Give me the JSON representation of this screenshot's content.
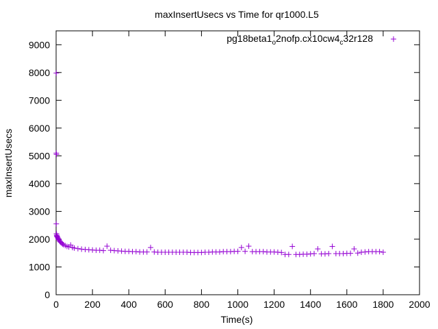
{
  "chart_data": {
    "type": "scatter",
    "title": "maxInsertUsecs vs Time for qr1000.L5",
    "xlabel": "Time(s)",
    "ylabel": "maxInsertUsecs",
    "xlim": [
      0,
      2000
    ],
    "ylim": [
      0,
      9500
    ],
    "x_ticks": [
      0,
      200,
      400,
      600,
      800,
      1000,
      1200,
      1400,
      1600,
      1800,
      2000
    ],
    "y_ticks": [
      0,
      1000,
      2000,
      3000,
      4000,
      5000,
      6000,
      7000,
      8000,
      9000
    ],
    "grid": false,
    "legend_position": "top-right",
    "legend": {
      "parts": [
        {
          "text": "pg18beta1",
          "sub": false
        },
        {
          "text": "o",
          "sub": true
        },
        {
          "text": "2nofp.cx10cw4",
          "sub": false
        },
        {
          "text": "c",
          "sub": true
        },
        {
          "text": "32r128",
          "sub": false
        }
      ]
    },
    "series": [
      {
        "name": "pg18beta1_o2nofp.cx10cw4_c32r128",
        "color": "#9400d3",
        "marker": "plus",
        "points": [
          [
            1,
            7980
          ],
          [
            1,
            5100
          ],
          [
            2,
            5050
          ],
          [
            1,
            2550
          ],
          [
            2,
            2200
          ],
          [
            3,
            2150
          ],
          [
            4,
            2120
          ],
          [
            5,
            2100
          ],
          [
            7,
            2080
          ],
          [
            9,
            2050
          ],
          [
            11,
            2020
          ],
          [
            13,
            2000
          ],
          [
            15,
            1980
          ],
          [
            18,
            1950
          ],
          [
            21,
            1920
          ],
          [
            25,
            1890
          ],
          [
            30,
            1860
          ],
          [
            35,
            1830
          ],
          [
            40,
            1800
          ],
          [
            50,
            1770
          ],
          [
            60,
            1740
          ],
          [
            70,
            1720
          ],
          [
            80,
            1790
          ],
          [
            90,
            1700
          ],
          [
            100,
            1680
          ],
          [
            120,
            1660
          ],
          [
            140,
            1640
          ],
          [
            160,
            1630
          ],
          [
            180,
            1620
          ],
          [
            200,
            1610
          ],
          [
            220,
            1600
          ],
          [
            240,
            1600
          ],
          [
            260,
            1590
          ],
          [
            280,
            1750
          ],
          [
            300,
            1600
          ],
          [
            320,
            1590
          ],
          [
            340,
            1580
          ],
          [
            360,
            1570
          ],
          [
            380,
            1560
          ],
          [
            400,
            1560
          ],
          [
            420,
            1550
          ],
          [
            440,
            1550
          ],
          [
            460,
            1540
          ],
          [
            480,
            1540
          ],
          [
            500,
            1540
          ],
          [
            520,
            1700
          ],
          [
            540,
            1540
          ],
          [
            560,
            1530
          ],
          [
            580,
            1530
          ],
          [
            600,
            1530
          ],
          [
            620,
            1530
          ],
          [
            640,
            1530
          ],
          [
            660,
            1530
          ],
          [
            680,
            1530
          ],
          [
            700,
            1530
          ],
          [
            720,
            1530
          ],
          [
            740,
            1520
          ],
          [
            760,
            1520
          ],
          [
            780,
            1520
          ],
          [
            800,
            1520
          ],
          [
            820,
            1530
          ],
          [
            840,
            1530
          ],
          [
            860,
            1540
          ],
          [
            880,
            1540
          ],
          [
            900,
            1540
          ],
          [
            920,
            1550
          ],
          [
            940,
            1550
          ],
          [
            960,
            1550
          ],
          [
            980,
            1560
          ],
          [
            1000,
            1560
          ],
          [
            1020,
            1700
          ],
          [
            1040,
            1560
          ],
          [
            1060,
            1750
          ],
          [
            1080,
            1550
          ],
          [
            1100,
            1550
          ],
          [
            1120,
            1550
          ],
          [
            1140,
            1550
          ],
          [
            1160,
            1540
          ],
          [
            1180,
            1540
          ],
          [
            1200,
            1540
          ],
          [
            1220,
            1530
          ],
          [
            1240,
            1520
          ],
          [
            1260,
            1450
          ],
          [
            1280,
            1450
          ],
          [
            1300,
            1740
          ],
          [
            1320,
            1450
          ],
          [
            1340,
            1450
          ],
          [
            1360,
            1460
          ],
          [
            1380,
            1460
          ],
          [
            1400,
            1470
          ],
          [
            1420,
            1480
          ],
          [
            1440,
            1650
          ],
          [
            1460,
            1470
          ],
          [
            1480,
            1470
          ],
          [
            1500,
            1480
          ],
          [
            1520,
            1740
          ],
          [
            1540,
            1480
          ],
          [
            1560,
            1480
          ],
          [
            1580,
            1480
          ],
          [
            1600,
            1490
          ],
          [
            1620,
            1490
          ],
          [
            1640,
            1650
          ],
          [
            1660,
            1500
          ],
          [
            1680,
            1530
          ],
          [
            1700,
            1540
          ],
          [
            1720,
            1550
          ],
          [
            1740,
            1550
          ],
          [
            1760,
            1550
          ],
          [
            1780,
            1550
          ],
          [
            1800,
            1530
          ]
        ]
      }
    ]
  }
}
